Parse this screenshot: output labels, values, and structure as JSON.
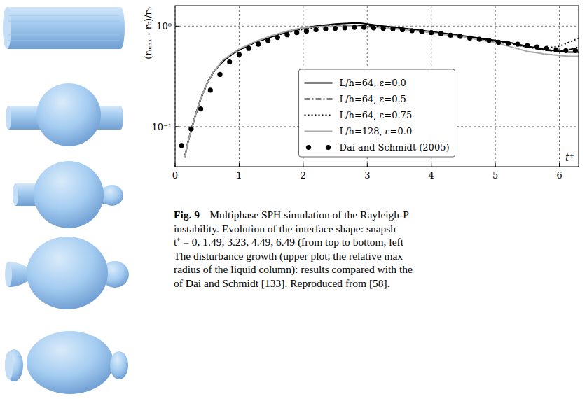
{
  "chart_data": {
    "type": "line",
    "x_label": "t⁺",
    "y_label": "(rₘₐₓ - r₀)/r₀",
    "log": "y",
    "grid": true,
    "legend": "lower center",
    "xlim": [
      0,
      6.3
    ],
    "ylim": [
      0.04,
      1.6
    ],
    "xticks": [
      0,
      1,
      2,
      3,
      4,
      5,
      6
    ],
    "yticks": [
      {
        "value": 0.1,
        "label": "10⁻¹"
      },
      {
        "value": 1,
        "label": "10⁰"
      }
    ],
    "series": [
      {
        "name": "L/h=64, ε=0.0",
        "color": "#000000",
        "line_style": "solid",
        "x": [
          0.15,
          0.2,
          0.3,
          0.4,
          0.5,
          0.6,
          0.75,
          0.9,
          1.0,
          1.25,
          1.5,
          1.75,
          2.0,
          2.25,
          2.5,
          2.75,
          2.9,
          3.0,
          3.25,
          3.5,
          3.75,
          4.0,
          4.25,
          4.5,
          4.75,
          5.0,
          5.25,
          5.5,
          5.75,
          6.0,
          6.15,
          6.3
        ],
        "values": [
          0.05,
          0.07,
          0.12,
          0.19,
          0.27,
          0.35,
          0.45,
          0.53,
          0.58,
          0.69,
          0.79,
          0.88,
          0.96,
          1.01,
          1.05,
          1.07,
          1.07,
          1.05,
          1.0,
          0.96,
          0.92,
          0.88,
          0.84,
          0.8,
          0.76,
          0.72,
          0.68,
          0.63,
          0.59,
          0.56,
          0.55,
          0.55
        ]
      },
      {
        "name": "L/h=64, ε=0.5",
        "color": "#000000",
        "line_style": "dashdot",
        "x": [
          0.15,
          0.2,
          0.3,
          0.4,
          0.5,
          0.6,
          0.75,
          0.9,
          1.0,
          1.25,
          1.5,
          1.75,
          2.0,
          2.25,
          2.5,
          2.75,
          2.9,
          3.0,
          3.25,
          3.5,
          3.75,
          4.0,
          4.25,
          4.5,
          4.75,
          5.0,
          5.25,
          5.5,
          5.75,
          6.0,
          6.15,
          6.3
        ],
        "values": [
          0.05,
          0.07,
          0.12,
          0.19,
          0.27,
          0.35,
          0.45,
          0.53,
          0.58,
          0.69,
          0.78,
          0.87,
          0.94,
          0.99,
          1.01,
          1.02,
          1.02,
          1.01,
          0.98,
          0.95,
          0.91,
          0.87,
          0.83,
          0.79,
          0.75,
          0.71,
          0.67,
          0.62,
          0.58,
          0.56,
          0.58,
          0.62
        ]
      },
      {
        "name": "L/h=64, ε=0.75",
        "color": "#000000",
        "line_style": "dotted",
        "x": [
          0.15,
          0.2,
          0.3,
          0.4,
          0.5,
          0.6,
          0.75,
          0.9,
          1.0,
          1.25,
          1.5,
          1.75,
          2.0,
          2.25,
          2.5,
          2.75,
          2.9,
          3.0,
          3.25,
          3.5,
          3.75,
          4.0,
          4.25,
          4.5,
          4.75,
          5.0,
          5.25,
          5.5,
          5.75,
          6.0,
          6.15,
          6.3
        ],
        "values": [
          0.05,
          0.07,
          0.12,
          0.19,
          0.27,
          0.35,
          0.45,
          0.53,
          0.58,
          0.69,
          0.78,
          0.87,
          0.93,
          0.98,
          1.0,
          1.0,
          1.0,
          0.99,
          0.97,
          0.94,
          0.9,
          0.86,
          0.82,
          0.78,
          0.74,
          0.7,
          0.66,
          0.62,
          0.6,
          0.63,
          0.69,
          0.76
        ]
      },
      {
        "name": "L/h=128, ε=0.0",
        "color": "#aaaaaa",
        "line_style": "solid",
        "x": [
          0.15,
          0.2,
          0.3,
          0.4,
          0.5,
          0.6,
          0.75,
          0.9,
          1.0,
          1.25,
          1.5,
          1.75,
          2.0,
          2.25,
          2.5,
          2.75,
          2.9,
          3.0,
          3.25,
          3.5,
          3.75,
          4.0,
          4.25,
          4.5,
          4.75,
          5.0,
          5.25,
          5.5,
          5.75,
          6.0,
          6.15,
          6.3
        ],
        "values": [
          0.05,
          0.07,
          0.12,
          0.19,
          0.27,
          0.35,
          0.46,
          0.54,
          0.59,
          0.7,
          0.8,
          0.89,
          0.96,
          0.99,
          1.0,
          1.0,
          0.99,
          0.98,
          0.96,
          0.93,
          0.9,
          0.86,
          0.82,
          0.78,
          0.73,
          0.68,
          0.62,
          0.56,
          0.53,
          0.51,
          0.5,
          0.5
        ]
      },
      {
        "name": "Dai and Schmidt (2005)",
        "color": "#000000",
        "line_style": "none",
        "marker": "circle",
        "x": [
          0.1,
          0.25,
          0.4,
          0.55,
          0.7,
          0.85,
          1.0,
          1.15,
          1.3,
          1.45,
          1.6,
          1.75,
          1.9,
          2.05,
          2.2,
          2.35,
          2.5,
          2.65,
          2.8,
          2.95,
          3.1,
          3.25,
          3.4,
          3.55,
          3.7,
          3.85,
          4.0,
          4.15,
          4.3,
          4.45,
          4.6,
          4.75,
          4.9,
          5.05,
          5.2,
          5.35,
          5.5,
          5.65,
          5.8,
          5.95,
          6.1,
          6.25
        ],
        "values": [
          0.065,
          0.095,
          0.15,
          0.23,
          0.33,
          0.44,
          0.52,
          0.6,
          0.66,
          0.72,
          0.77,
          0.82,
          0.86,
          0.89,
          0.92,
          0.94,
          0.95,
          0.96,
          0.97,
          0.97,
          0.96,
          0.95,
          0.94,
          0.92,
          0.9,
          0.88,
          0.86,
          0.84,
          0.81,
          0.79,
          0.76,
          0.74,
          0.72,
          0.69,
          0.67,
          0.66,
          0.64,
          0.62,
          0.6,
          0.58,
          0.57,
          0.57
        ]
      }
    ]
  },
  "caption": {
    "label": "Fig. 9",
    "lines": [
      "Multiphase SPH simulation of the Rayleigh-P",
      "instability. Evolution of the interface shape: snapsh",
      "t⁺ = 0, 1.49, 3.23, 4.49, 6.49 (from top to bottom, left",
      "The disturbance growth (upper plot, the relative max",
      "radius of the liquid column): results compared with the",
      "of Dai and Schmidt [133]. Reproduced from [58]."
    ]
  }
}
